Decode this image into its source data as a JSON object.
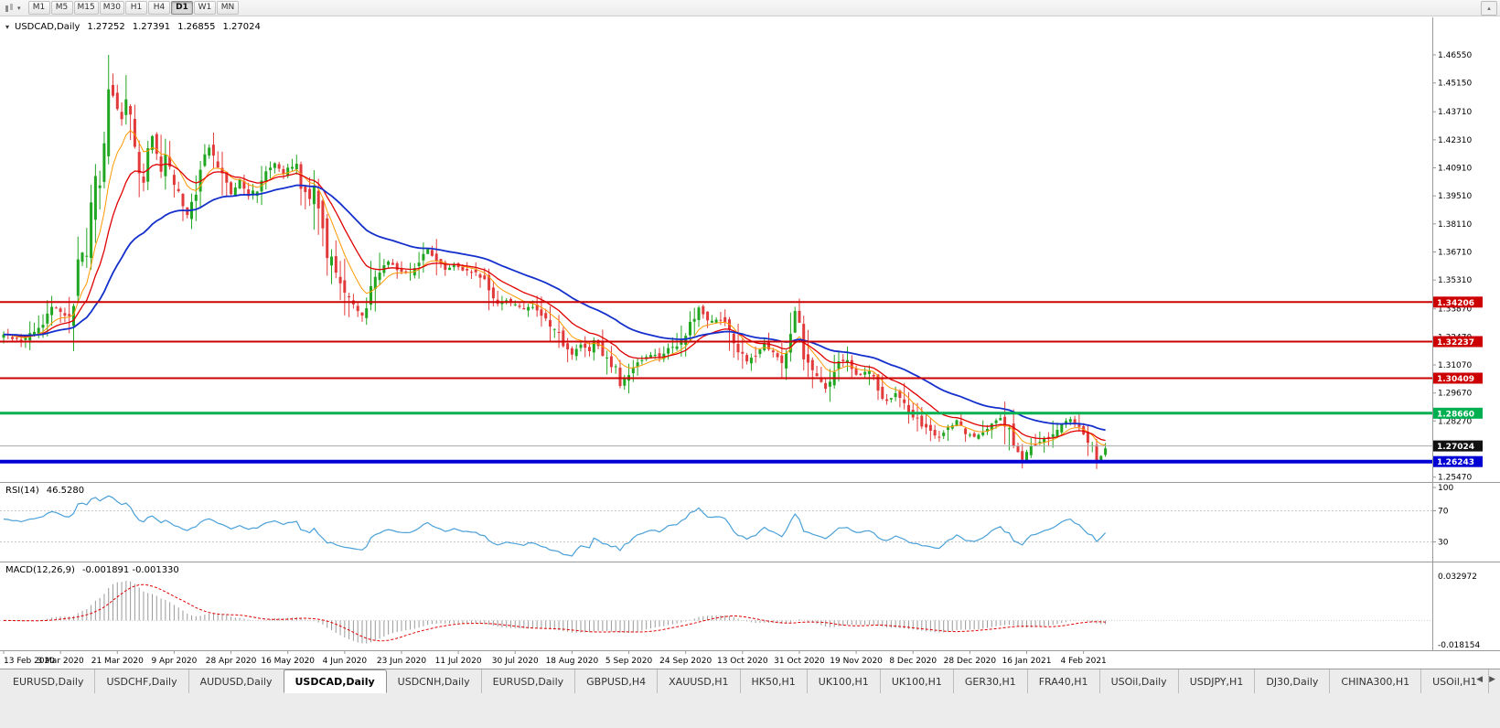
{
  "icons": {
    "caret_down": "▾",
    "collapse_up": "▴",
    "tab_scroll_left": "◀",
    "tab_scroll_right": "▶"
  },
  "colors": {
    "up": "#21a621",
    "down": "#e23a3a",
    "ma_fast": "#ff9900",
    "ma_mid": "#e00000",
    "ma_slow": "#1430cc",
    "hline_red": "#cc0000",
    "hline_green": "#00b050",
    "hline_blue": "#0000d4",
    "rsi_line": "#4aa0d8",
    "macd_hist": "#9a9a9a",
    "macd_signal": "#e00000",
    "current_line": "#a8a8a8",
    "current_tag": "#111111",
    "axis_text": "#000000",
    "separator": "#9a9a9a",
    "level_dash": "#c9c9c9"
  },
  "toolbar": {
    "timeframes": [
      {
        "label": "M1",
        "active": false
      },
      {
        "label": "M5",
        "active": false
      },
      {
        "label": "M15",
        "active": false
      },
      {
        "label": "M30",
        "active": false
      },
      {
        "label": "H1",
        "active": false
      },
      {
        "label": "H4",
        "active": false
      },
      {
        "label": "D1",
        "active": true
      },
      {
        "label": "W1",
        "active": false
      },
      {
        "label": "MN",
        "active": false
      }
    ]
  },
  "chart": {
    "title": {
      "symbol": "USDCAD,Daily",
      "open": "1.27252",
      "high": "1.27391",
      "low": "1.26855",
      "close": "1.27024"
    }
  },
  "price_scale": {
    "ticks": [
      "1.46550",
      "1.45150",
      "1.43710",
      "1.42310",
      "1.40910",
      "1.39510",
      "1.38110",
      "1.36710",
      "1.35310",
      "1.33870",
      "1.32470",
      "1.31070",
      "1.29670",
      "1.28270",
      "1.25470"
    ]
  },
  "hlines": [
    {
      "label": "1.34206",
      "price": 1.34206,
      "color": "#cc0000",
      "width": 2
    },
    {
      "label": "1.32237",
      "price": 1.32237,
      "color": "#cc0000",
      "width": 2
    },
    {
      "label": "1.30409",
      "price": 1.30409,
      "color": "#cc0000",
      "width": 2
    },
    {
      "label": "1.28660",
      "price": 1.2866,
      "color": "#00b050",
      "width": 3
    },
    {
      "label": "1.26243",
      "price": 1.26243,
      "color": "#0000d4",
      "width": 4
    }
  ],
  "current_price": {
    "label": "1.27024",
    "value": 1.27024
  },
  "rsi": {
    "label": "RSI(14)",
    "value": "46.5280",
    "levels": [
      100,
      70,
      30
    ],
    "axis_labels": [
      "100",
      "70",
      "30"
    ]
  },
  "macd": {
    "label": "MACD(12,26,9)",
    "values": "-0.001891 -0.001330",
    "axis_max": "0.032972",
    "axis_min": "-0.018154"
  },
  "dates": [
    "13 Feb 2020",
    "3 Mar 2020",
    "21 Mar 2020",
    "9 Apr 2020",
    "28 Apr 2020",
    "16 May 2020",
    "4 Jun 2020",
    "23 Jun 2020",
    "11 Jul 2020",
    "30 Jul 2020",
    "18 Aug 2020",
    "5 Sep 2020",
    "24 Sep 2020",
    "13 Oct 2020",
    "31 Oct 2020",
    "19 Nov 2020",
    "8 Dec 2020",
    "28 Dec 2020",
    "16 Jan 2021",
    "4 Feb 2021"
  ],
  "tabs": [
    {
      "label": "EURUSD,Daily",
      "active": false
    },
    {
      "label": "USDCHF,Daily",
      "active": false
    },
    {
      "label": "AUDUSD,Daily",
      "active": false
    },
    {
      "label": "USDCAD,Daily",
      "active": true
    },
    {
      "label": "USDCNH,Daily",
      "active": false
    },
    {
      "label": "EURUSD,Daily",
      "active": false
    },
    {
      "label": "GBPUSD,H4",
      "active": false
    },
    {
      "label": "XAUUSD,H1",
      "active": false
    },
    {
      "label": "HK50,H1",
      "active": false
    },
    {
      "label": "UK100,H1",
      "active": false
    },
    {
      "label": "UK100,H1",
      "active": false
    },
    {
      "label": "GER30,H1",
      "active": false
    },
    {
      "label": "FRA40,H1",
      "active": false
    },
    {
      "label": "USOil,Daily",
      "active": false
    },
    {
      "label": "USDJPY,H1",
      "active": false
    },
    {
      "label": "DJ30,Daily",
      "active": false
    },
    {
      "label": "CHINA300,H1",
      "active": false
    },
    {
      "label": "USOil,H1",
      "active": false
    }
  ],
  "chart_data": {
    "type": "candlestick",
    "symbol": "USDCAD",
    "timeframe": "Daily",
    "title": "USDCAD,Daily 1.27252 1.27391 1.26855 1.27024",
    "bars": 253,
    "x_label_every": 13,
    "y_axis": {
      "min": 1.2547,
      "max": 1.4655,
      "step": 0.014
    },
    "high_overrides": {
      "11": 1.3452,
      "24": 1.4655,
      "25": 1.4562,
      "82": 1.3318,
      "181": 1.3398
    },
    "low_overrides": {
      "141": 1.299,
      "233": 1.259,
      "250": 1.2588
    },
    "close_anchors": [
      [
        0,
        1.3258
      ],
      [
        4,
        1.3228
      ],
      [
        8,
        1.3292
      ],
      [
        11,
        1.339
      ],
      [
        13,
        1.3382
      ],
      [
        15,
        1.333
      ],
      [
        16,
        1.3422
      ],
      [
        17,
        1.3655
      ],
      [
        18,
        1.372
      ],
      [
        19,
        1.3648
      ],
      [
        20,
        1.3928
      ],
      [
        21,
        1.4015
      ],
      [
        22,
        1.3978
      ],
      [
        23,
        1.4215
      ],
      [
        24,
        1.45
      ],
      [
        25,
        1.444
      ],
      [
        27,
        1.4325
      ],
      [
        28,
        1.4425
      ],
      [
        29,
        1.436
      ],
      [
        30,
        1.4175
      ],
      [
        31,
        1.4062
      ],
      [
        32,
        1.4005
      ],
      [
        33,
        1.4188
      ],
      [
        34,
        1.4255
      ],
      [
        36,
        1.4062
      ],
      [
        37,
        1.4155
      ],
      [
        38,
        1.4088
      ],
      [
        40,
        1.3958
      ],
      [
        42,
        1.3852
      ],
      [
        44,
        1.3962
      ],
      [
        45,
        1.4088
      ],
      [
        47,
        1.4188
      ],
      [
        49,
        1.4098
      ],
      [
        51,
        1.4012
      ],
      [
        52,
        1.3962
      ],
      [
        54,
        1.4032
      ],
      [
        56,
        1.3952
      ],
      [
        58,
        1.399
      ],
      [
        60,
        1.4088
      ],
      [
        62,
        1.4108
      ],
      [
        64,
        1.4058
      ],
      [
        65,
        1.4098
      ],
      [
        67,
        1.4108
      ],
      [
        68,
        1.3988
      ],
      [
        70,
        1.3928
      ],
      [
        71,
        1.3978
      ],
      [
        72,
        1.3878
      ],
      [
        74,
        1.3678
      ],
      [
        76,
        1.3558
      ],
      [
        78,
        1.3458
      ],
      [
        80,
        1.3398
      ],
      [
        82,
        1.3358
      ],
      [
        83,
        1.3412
      ],
      [
        85,
        1.3558
      ],
      [
        88,
        1.3618
      ],
      [
        90,
        1.3588
      ],
      [
        92,
        1.3568
      ],
      [
        94,
        1.3588
      ],
      [
        96,
        1.3658
      ],
      [
        97,
        1.3682
      ],
      [
        99,
        1.3628
      ],
      [
        101,
        1.3578
      ],
      [
        103,
        1.3608
      ],
      [
        105,
        1.3572
      ],
      [
        107,
        1.3572
      ],
      [
        109,
        1.3548
      ],
      [
        110,
        1.3518
      ],
      [
        111,
        1.3468
      ],
      [
        112,
        1.3438
      ],
      [
        113,
        1.3418
      ],
      [
        115,
        1.3428
      ],
      [
        117,
        1.341
      ],
      [
        119,
        1.3388
      ],
      [
        121,
        1.3392
      ],
      [
        123,
        1.3352
      ],
      [
        125,
        1.3308
      ],
      [
        127,
        1.3262
      ],
      [
        128,
        1.3218
      ],
      [
        129,
        1.3178
      ],
      [
        130,
        1.3158
      ],
      [
        132,
        1.3208
      ],
      [
        134,
        1.3172
      ],
      [
        135,
        1.3228
      ],
      [
        137,
        1.3158
      ],
      [
        139,
        1.3108
      ],
      [
        140,
        1.3092
      ],
      [
        141,
        1.3008
      ],
      [
        142,
        1.3042
      ],
      [
        144,
        1.3092
      ],
      [
        146,
        1.3132
      ],
      [
        148,
        1.3162
      ],
      [
        150,
        1.3148
      ],
      [
        152,
        1.3182
      ],
      [
        154,
        1.3208
      ],
      [
        156,
        1.3258
      ],
      [
        158,
        1.3352
      ],
      [
        159,
        1.3388
      ],
      [
        161,
        1.3338
      ],
      [
        163,
        1.3332
      ],
      [
        165,
        1.3312
      ],
      [
        166,
        1.3282
      ],
      [
        168,
        1.3182
      ],
      [
        170,
        1.3122
      ],
      [
        172,
        1.3158
      ],
      [
        174,
        1.3212
      ],
      [
        176,
        1.3158
      ],
      [
        178,
        1.3128
      ],
      [
        180,
        1.3258
      ],
      [
        181,
        1.3382
      ],
      [
        182,
        1.3322
      ],
      [
        183,
        1.3172
      ],
      [
        185,
        1.3088
      ],
      [
        187,
        1.3022
      ],
      [
        188,
        1.2992
      ],
      [
        190,
        1.3062
      ],
      [
        191,
        1.3138
      ],
      [
        193,
        1.3118
      ],
      [
        195,
        1.3052
      ],
      [
        197,
        1.3068
      ],
      [
        198,
        1.3088
      ],
      [
        200,
        1.2982
      ],
      [
        202,
        1.2922
      ],
      [
        204,
        1.2962
      ],
      [
        206,
        1.2902
      ],
      [
        208,
        1.2858
      ],
      [
        210,
        1.2798
      ],
      [
        212,
        1.2772
      ],
      [
        214,
        1.2748
      ],
      [
        216,
        1.2792
      ],
      [
        218,
        1.2832
      ],
      [
        220,
        1.2772
      ],
      [
        222,
        1.2748
      ],
      [
        224,
        1.2778
      ],
      [
        226,
        1.2818
      ],
      [
        228,
        1.2848
      ],
      [
        230,
        1.2778
      ],
      [
        231,
        1.2722
      ],
      [
        232,
        1.2662
      ],
      [
        233,
        1.2628
      ],
      [
        234,
        1.2678
      ],
      [
        236,
        1.2712
      ],
      [
        238,
        1.2732
      ],
      [
        240,
        1.2772
      ],
      [
        242,
        1.2812
      ],
      [
        244,
        1.2835
      ],
      [
        246,
        1.2782
      ],
      [
        248,
        1.2732
      ],
      [
        249,
        1.2692
      ],
      [
        250,
        1.2618
      ],
      [
        251,
        1.2658
      ],
      [
        252,
        1.2702
      ]
    ],
    "moving_averages": [
      {
        "period": 8,
        "color": "#ff9900",
        "width": 1
      },
      {
        "period": 16,
        "color": "#e00000",
        "width": 1.3
      },
      {
        "period": 40,
        "color": "#1430cc",
        "width": 1.8
      }
    ],
    "rsi": {
      "period": 14,
      "last": 46.528,
      "levels": [
        100,
        70,
        30
      ]
    },
    "macd": {
      "fast": 12,
      "slow": 26,
      "signal": 9,
      "last": -0.001891,
      "last_signal": -0.00133,
      "scale_max": 0.032972,
      "scale_min": -0.018154
    }
  }
}
